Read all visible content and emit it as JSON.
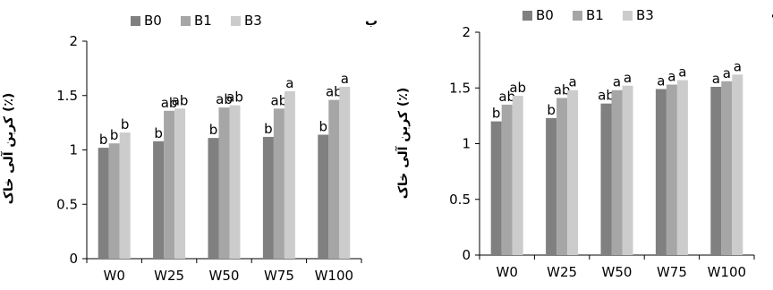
{
  "chart_data": [
    {
      "type": "bar",
      "panel_label": "ب",
      "categories": [
        "W0",
        "W25",
        "W50",
        "W75",
        "W100"
      ],
      "series": [
        {
          "name": "B0",
          "color": "#808080",
          "values": [
            1.02,
            1.08,
            1.11,
            1.12,
            1.14
          ]
        },
        {
          "name": "B1",
          "color": "#a6a6a6",
          "values": [
            1.06,
            1.36,
            1.39,
            1.38,
            1.46
          ]
        },
        {
          "name": "B3",
          "color": "#cccccc",
          "values": [
            1.16,
            1.38,
            1.41,
            1.54,
            1.58
          ]
        }
      ],
      "labels": [
        [
          "b",
          "b",
          "b",
          "b",
          "b"
        ],
        [
          "b",
          "ab",
          "ab",
          "ab",
          "ab"
        ],
        [
          "b",
          "ab",
          "ab",
          "a",
          "a"
        ]
      ],
      "ylabel": "(٪) کربن آلی خاک",
      "xlabel": "",
      "yticks": [
        "0",
        "0.5",
        "1",
        "1.5",
        "2"
      ],
      "ylim": [
        0,
        2
      ],
      "legend_position": "top"
    },
    {
      "type": "bar",
      "panel_label": "الف",
      "categories": [
        "W0",
        "W25",
        "W50",
        "W75",
        "W100"
      ],
      "series": [
        {
          "name": "B0",
          "color": "#808080",
          "values": [
            1.2,
            1.23,
            1.36,
            1.49,
            1.51
          ]
        },
        {
          "name": "B1",
          "color": "#a6a6a6",
          "values": [
            1.35,
            1.41,
            1.48,
            1.53,
            1.56
          ]
        },
        {
          "name": "B3",
          "color": "#cccccc",
          "values": [
            1.43,
            1.48,
            1.52,
            1.57,
            1.62
          ]
        }
      ],
      "labels": [
        [
          "b",
          "b",
          "ab",
          "a",
          "a"
        ],
        [
          "ab",
          "ab",
          "a",
          "a",
          "a"
        ],
        [
          "ab",
          "a",
          "a",
          "a",
          "a"
        ]
      ],
      "ylabel": "(٪) کربن آلی خاک",
      "xlabel": "",
      "yticks": [
        "0",
        "0.5",
        "1",
        "1.5",
        "2"
      ],
      "ylim": [
        0,
        2
      ],
      "legend_position": "top"
    }
  ]
}
